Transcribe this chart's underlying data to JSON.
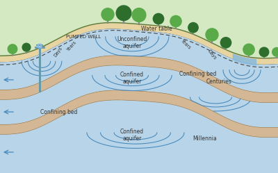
{
  "bg_color": "#1a1a1a",
  "hill_color": "#d4e8c2",
  "hill_outline": "#5a7a3a",
  "unconfined_aquifer_color": "#b8d4e8",
  "confined_aquifer_color": "#b8d4e8",
  "confining_bed_color": "#d4b896",
  "sand_top_color": "#e8d4a0",
  "flow_line_color": "#4488bb",
  "tree_canopy_light": "#5aaa4a",
  "tree_canopy_dark": "#2d6e2d",
  "tree_trunk_color": "#888888",
  "well_color": "#6699aa",
  "river_color": "#88bbdd",
  "label_color": "#333333",
  "labels": {
    "pumped_well": "PUMPED WELL",
    "water_table": "Water table",
    "unconfined_aquifer": "Unconfined\naquifer",
    "confining_bed_1": "Confining bed",
    "confined_aquifer_1": "Confined\naquifer",
    "confining_bed_2": "Confining bed",
    "confined_aquifer_2": "Confined\naquifer",
    "days_left": "Days",
    "years_left": "Years",
    "years_right": "Years",
    "days_right": "Days",
    "centuries": "Centuries",
    "millennia": "Millennia"
  }
}
